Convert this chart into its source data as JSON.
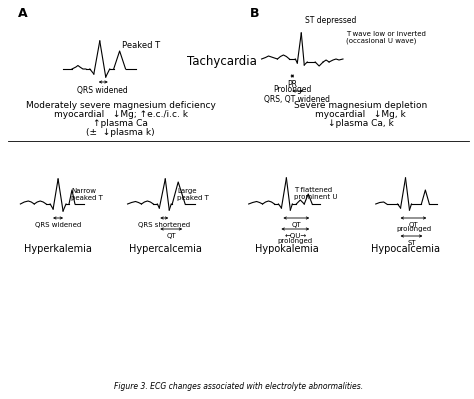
{
  "section_A_label": "A",
  "section_B_label": "B",
  "tachycardia_label": "Tachycardia",
  "peaked_T_A": "Peaked T",
  "QRS_widened_A": "QRS widened",
  "ST_depressed": "ST depressed",
  "T_wave_label": "T wave low or inverted\n(occasional U wave)",
  "PR_label": "PR",
  "prolonged_label": "Prolonged",
  "QRS_QT_widened": "QRS, QT widened",
  "mod_severe_line1": "Moderately severe magnesium deficiency",
  "mod_severe_line2": "myocardial   ↓Mg; ↑e.c./i.c. k",
  "mod_severe_line3": "↑plasma Ca",
  "mod_severe_line4": "(±  ↓plasma k)",
  "severe_line1": "Severe magnesium depletion",
  "severe_line2": "myocardial   ↓Mg, k",
  "severe_line3": "↓plasma Ca, k",
  "narrow_peaked_T": "Narrow\npeaked T",
  "QRS_widened_hyper": "QRS widened",
  "large_peaked_T": "Large\npeaked T",
  "QRS_shortened": "QRS shortened",
  "QT_label_hyper": "QT",
  "T_flat_U": "T flattened\nprominent U",
  "QT_label_hypo": "QT",
  "QU_label": "←QU→",
  "prolonged_hypo": "prolonged",
  "QT_label_hypoca": "QT",
  "prolonged_hypoca": "prolonged",
  "ST_label": "ST",
  "hyper_k": "Hyperkalemia",
  "hyper_ca": "Hypercalcemia",
  "hypo_k": "Hypokalemia",
  "hypo_ca": "Hypocalcemia",
  "caption": "Figure 3. ECG changes associated with electrolyte abnormalities."
}
